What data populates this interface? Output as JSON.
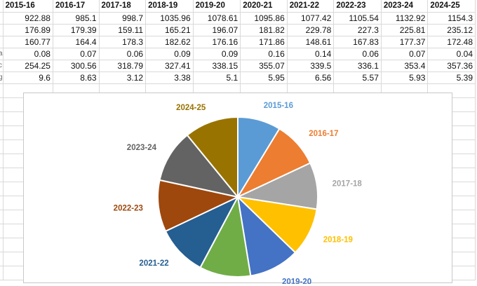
{
  "table": {
    "headers": [
      "2015-16",
      "2016-17",
      "2017-18",
      "2018-19",
      "2019-20",
      "2020-21",
      "2021-22",
      "2022-23",
      "2023-24",
      "2024-25"
    ],
    "row_headers": [
      "",
      "",
      "",
      "a",
      "c",
      "g"
    ],
    "rows": [
      [
        "922.88",
        "985.1",
        "998.7",
        "1035.96",
        "1078.61",
        "1095.86",
        "1077.42",
        "1105.54",
        "1132.92",
        "1154.3"
      ],
      [
        "176.89",
        "179.39",
        "159.11",
        "165.21",
        "196.07",
        "181.82",
        "229.78",
        "227.3",
        "225.81",
        "235.12"
      ],
      [
        "160.77",
        "164.4",
        "178.3",
        "182.62",
        "176.16",
        "171.86",
        "148.61",
        "167.83",
        "177.37",
        "172.48"
      ],
      [
        "0.08",
        "0.07",
        "0.06",
        "0.09",
        "0.09",
        "0.16",
        "0.14",
        "0.06",
        "0.07",
        "0.04"
      ],
      [
        "254.25",
        "300.56",
        "318.79",
        "327.41",
        "338.15",
        "355.07",
        "339.5",
        "336.1",
        "353.4",
        "357.36"
      ],
      [
        "9.6",
        "8.63",
        "3.12",
        "3.38",
        "5.1",
        "5.95",
        "6.56",
        "5.57",
        "5.93",
        "5.39"
      ]
    ]
  },
  "chart_data": {
    "type": "pie",
    "title": "",
    "categories": [
      "2015-16",
      "2016-17",
      "2017-18",
      "2018-19",
      "2019-20",
      "2020-21",
      "2021-22",
      "2022-23",
      "2023-24",
      "2024-25"
    ],
    "values": [
      922.88,
      985.1,
      998.7,
      1035.96,
      1078.61,
      1095.86,
      1077.42,
      1105.54,
      1132.92,
      1154.3
    ],
    "colors": [
      "#5b9bd5",
      "#ed7d31",
      "#a5a5a5",
      "#ffc000",
      "#4472c4",
      "#70ad47",
      "#255e91",
      "#9e480e",
      "#636363",
      "#997300"
    ],
    "legend": "none",
    "data_labels": "category-name-outside"
  }
}
